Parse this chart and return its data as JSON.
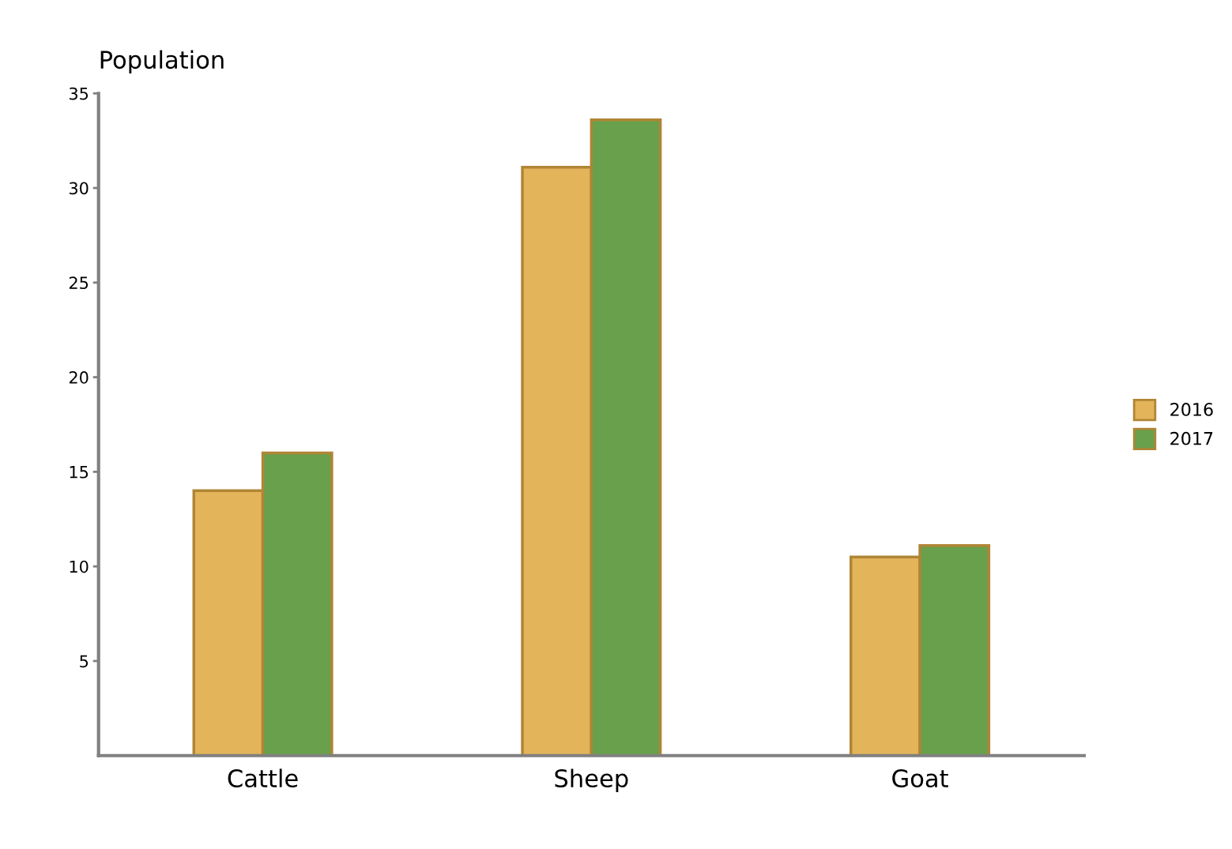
{
  "chart_data": {
    "type": "bar",
    "ylabel": "Population",
    "categories": [
      "Cattle",
      "Sheep",
      "Goat"
    ],
    "series": [
      {
        "name": "2016",
        "color": "#e3b45a",
        "values": [
          14,
          31.1,
          10.5
        ]
      },
      {
        "name": "2017",
        "color": "#68a04b",
        "values": [
          16,
          33.6,
          11.1
        ]
      }
    ],
    "ylim": [
      0,
      35
    ],
    "yticks": [
      5,
      10,
      15,
      20,
      25,
      30,
      35
    ],
    "grid": false,
    "legend": "right"
  }
}
